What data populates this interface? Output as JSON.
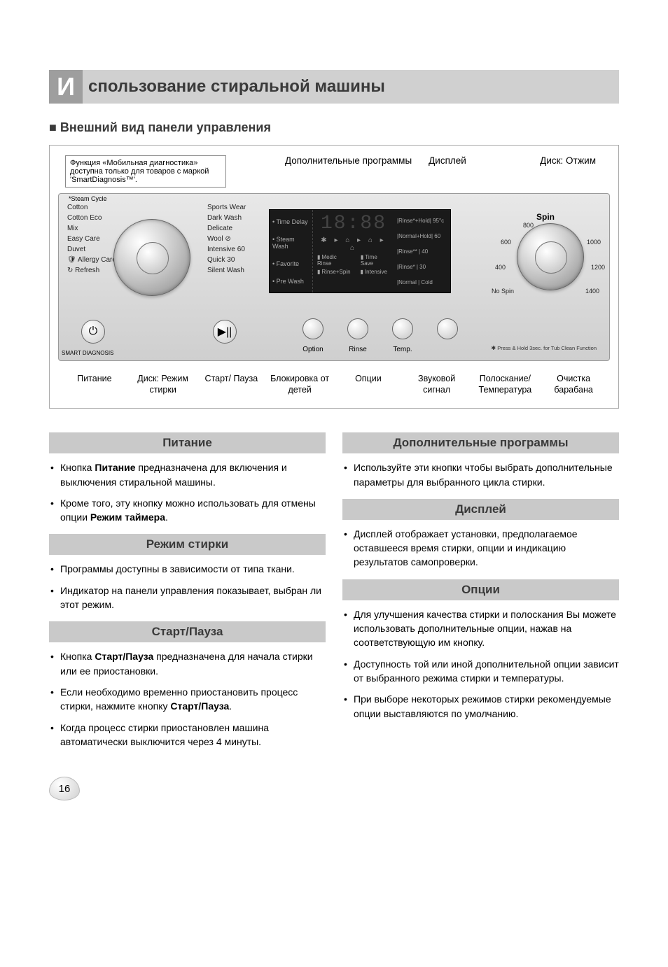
{
  "page": {
    "initial": "И",
    "title": "спользование стиральной машины",
    "number": "16"
  },
  "subheading": "Внешний вид панели управления",
  "top_callouts": {
    "note": "Функция «Мобильная диагностика» доступна только для товаров с маркой 'SmartDiagnosis™'.",
    "extra": "Дополнительные программы",
    "display": "Дисплей",
    "spin_dial": "Диск: Отжим"
  },
  "panel": {
    "steam_label": "*Steam Cycle",
    "prog_left": [
      "Cotton",
      "Cotton Eco",
      "Mix",
      "Easy Care",
      "Duvet",
      "🛡 Allergy Care",
      "↻ Refresh"
    ],
    "prog_right": [
      "Sports Wear",
      "Dark Wash",
      "Delicate",
      "Wool ⊘",
      "Intensive 60",
      "Quick 30",
      "Silent Wash"
    ],
    "power_glyph": "⏻",
    "diag_label": "SMART DIAGNOSIS",
    "play_glyph": "▶||",
    "lcd": {
      "left": [
        "Time Delay",
        "Steam Wash",
        "Favorite",
        "Pre Wash"
      ],
      "time": "18:88",
      "icons": "✱ ▸ ⌂ ▸ ⌂ ▸ ⌂",
      "row1": [
        "Medic Rinse",
        "Time Save"
      ],
      "row2": [
        "Rinse+Spin",
        "Intensive"
      ],
      "right": [
        "|Rinse*+Hold| 95°c",
        "|Normal+Hold| 60",
        "|Rinse**  | 40",
        "|Rinse*   | 30",
        "|Normal | Cold"
      ]
    },
    "spin": {
      "title": "Spin",
      "ticks": {
        "t800": "800",
        "t600": "600",
        "t400": "400",
        "tno": "No Spin",
        "t1000": "1000",
        "t1200": "1200",
        "t1400": "1400"
      }
    },
    "small": {
      "option": "Option",
      "rinse": "Rinse",
      "temp": "Temp."
    },
    "tub_note": "Press & Hold 3sec. for Tub Clean Function"
  },
  "bottom_callouts": [
    "Питание",
    "Диск: Режим стирки",
    "Старт/ Пауза",
    "Блокировка от детей",
    "Опции",
    "Звуковой сигнал",
    "Полоскание/ Температура",
    "Очистка барабана"
  ],
  "sections": {
    "left": [
      {
        "title": "Питание",
        "items": [
          {
            "pre": "Кнопка ",
            "b": "Питание",
            "post": " предназначена для включения и выключения стиральной машины."
          },
          {
            "pre": "Кроме того, эту кнопку можно использовать для отмены опции ",
            "b": "Режим таймера",
            "post": "."
          }
        ]
      },
      {
        "title": "Режим стирки",
        "items": [
          {
            "pre": "Программы доступны в зависимости от типа ткани.",
            "b": "",
            "post": ""
          },
          {
            "pre": "Индикатор на панели управления показывает, выбран ли этот режим.",
            "b": "",
            "post": ""
          }
        ]
      },
      {
        "title": "Старт/Пауза",
        "items": [
          {
            "pre": "Кнопка ",
            "b": "Старт/Пауза",
            "post": " предназначена для начала стирки или ее приостановки."
          },
          {
            "pre": "Если необходимо временно приостановить процесс стирки, нажмите кнопку ",
            "b": "Старт/Пауза",
            "post": "."
          },
          {
            "pre": "Когда процесс стирки приостановлен машина автоматически выключится через 4 минуты.",
            "b": "",
            "post": ""
          }
        ]
      }
    ],
    "right": [
      {
        "title": "Дополнительные программы",
        "items": [
          {
            "pre": "Используйте эти кнопки чтобы выбрать дополнительные параметры для выбранного цикла стирки.",
            "b": "",
            "post": ""
          }
        ]
      },
      {
        "title": "Дисплей",
        "items": [
          {
            "pre": "Дисплей отображает установки, предполагаемое оставшееся время стирки, опции и индикацию результатов самопроверки.",
            "b": "",
            "post": ""
          }
        ]
      },
      {
        "title": "Опции",
        "items": [
          {
            "pre": "Для улучшения качества стирки и полоскания Вы можете использовать дополнительные опции, нажав на соответствующую им кнопку.",
            "b": "",
            "post": ""
          },
          {
            "pre": "Доступность той или иной дополнительной опции зависит от выбранного режима стирки и температуры.",
            "b": "",
            "post": ""
          },
          {
            "pre": "При выборе некоторых режимов стирки рекомендуемые опции выставляются по умолчанию.",
            "b": "",
            "post": ""
          }
        ]
      }
    ]
  }
}
